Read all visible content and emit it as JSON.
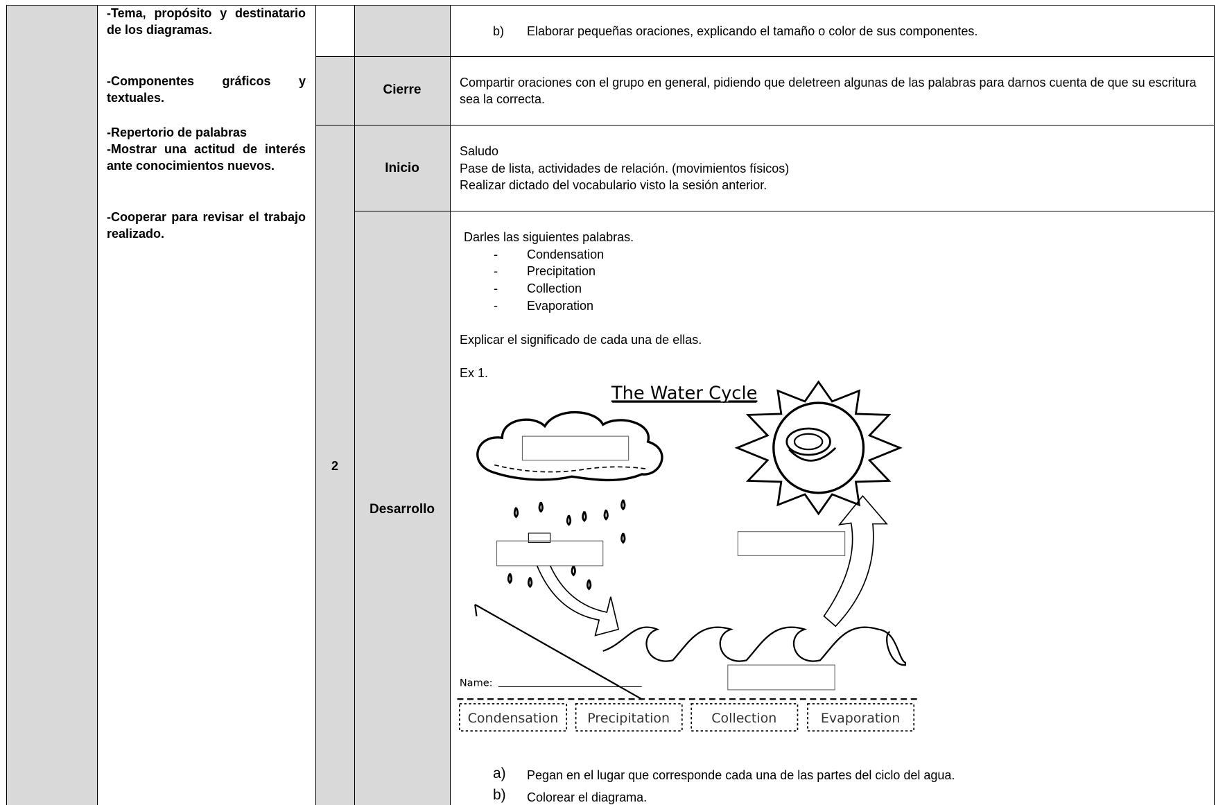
{
  "objectives": [
    "-Tema, propósito y destinatario de los diagramas.",
    "-Componentes gráficos y textuales.",
    "-Repertorio de palabras",
    "-Mostrar una actitud de interés ante conocimientos nuevos.",
    "-Cooperar para revisar el trabajo realizado."
  ],
  "session": "2",
  "previous": {
    "marker": "b)",
    "text": "Elaborar pequeñas oraciones, explicando el tamaño o color de sus componentes."
  },
  "cierre": {
    "stage": "Cierre",
    "text": "Compartir oraciones con el grupo en general, pidiendo que deletreen algunas de las palabras para darnos cuenta de que su escritura sea la correcta."
  },
  "inicio": {
    "stage": "Inicio",
    "lines": [
      "Saludo",
      "Pase de lista, actividades de relación. (movimientos físicos)",
      "Realizar dictado del vocabulario visto la sesión anterior."
    ]
  },
  "desarrollo": {
    "stage": "Desarrollo",
    "intro": "Darles las siguientes palabras.",
    "bullet": "-",
    "words": [
      "Condensation",
      "Precipitation",
      "Collection",
      "Evaporation"
    ],
    "explain": "Explicar el significado de cada una de ellas.",
    "exercise": "Ex 1.",
    "diagram": {
      "title": "The Water Cycle",
      "name_label": "Name:",
      "labels": [
        "Condensation",
        "Precipitation",
        "Collection",
        "Evaporation"
      ]
    },
    "steps": [
      {
        "marker": "a)",
        "text": "Pegan en el lugar que corresponde cada una de las partes del ciclo del agua."
      },
      {
        "marker": "b)",
        "text": "Colorear el diagrama."
      }
    ]
  }
}
